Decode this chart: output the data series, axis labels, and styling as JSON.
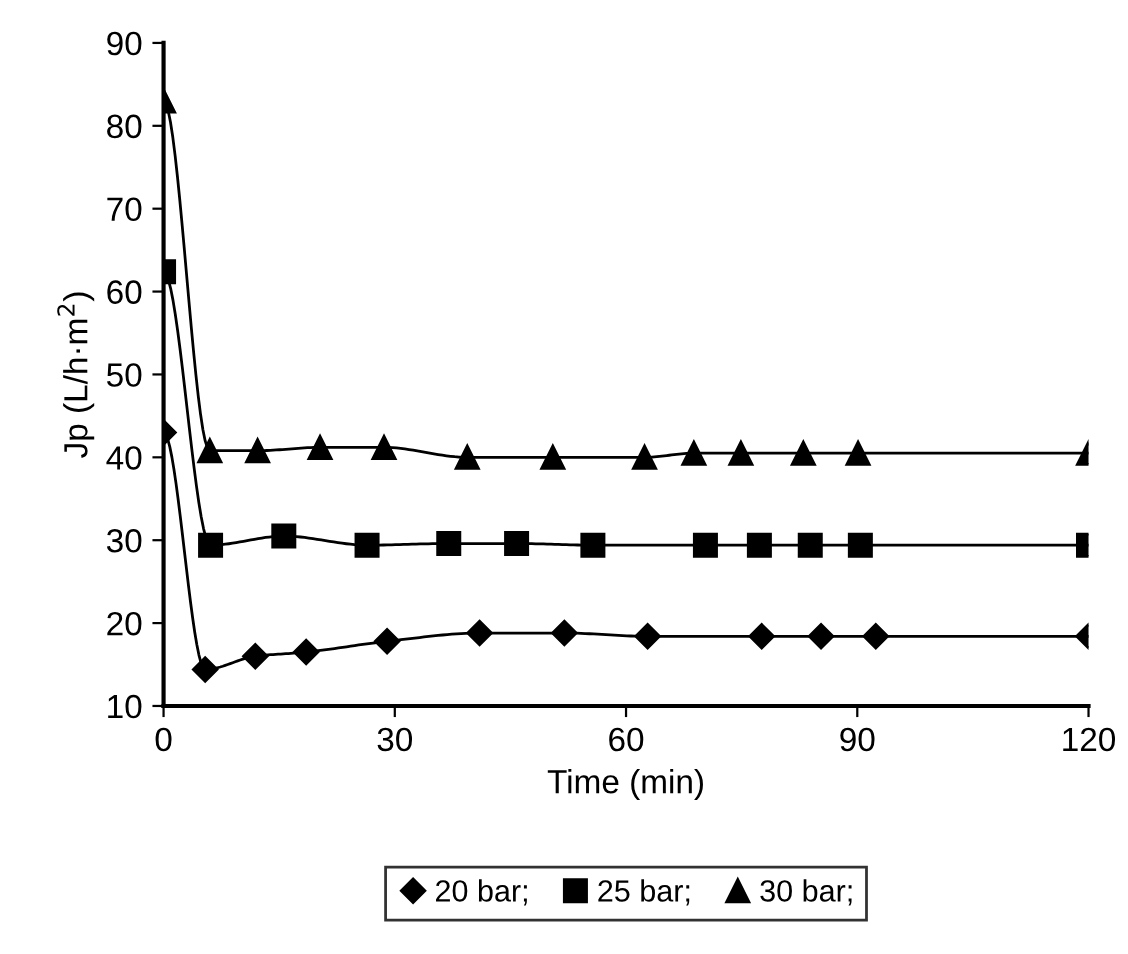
{
  "chart_data": {
    "type": "line",
    "xlabel": "Time (min)",
    "ylabel": "Jp (L/h·m$^{2}$)",
    "xlim": [
      0,
      120
    ],
    "xticks": [
      0,
      30,
      60,
      90,
      120
    ],
    "ylim": [
      10,
      90
    ],
    "yticks": [
      10,
      20,
      30,
      40,
      50,
      60,
      70,
      80,
      90
    ],
    "grid": false,
    "legend": "bottom",
    "line_style": "solid",
    "series": [
      {
        "name": "20 bar;",
        "color": "#000000",
        "marker": "diamond",
        "x": [
          0,
          5.4,
          11.9,
          18.5,
          29,
          41,
          52,
          62.8,
          77.6,
          85.3,
          92.4,
          120
        ],
        "values": [
          43,
          14.4,
          16,
          16.5,
          17.8,
          18.8,
          18.8,
          18.4,
          18.4,
          18.4,
          18.4,
          18.4
        ]
      },
      {
        "name": "25 bar;",
        "color": "#000000",
        "marker": "square",
        "x": [
          0,
          6.1,
          15.6,
          26.4,
          37,
          45.8,
          55.7,
          70.3,
          77.3,
          83.9,
          90.4,
          120
        ],
        "values": [
          62.4,
          29.4,
          30.5,
          29.4,
          29.6,
          29.6,
          29.4,
          29.4,
          29.4,
          29.4,
          29.4,
          29.4
        ]
      },
      {
        "name": "30 bar;",
        "color": "#000000",
        "marker": "triangle",
        "x": [
          0,
          6,
          12.2,
          20.3,
          28.6,
          39.4,
          50.5,
          62.4,
          68.8,
          74.9,
          83,
          90.1,
          120
        ],
        "values": [
          83,
          40.8,
          40.8,
          41.2,
          41.2,
          40,
          40,
          40,
          40.5,
          40.5,
          40.5,
          40.5,
          40.5
        ]
      }
    ]
  }
}
